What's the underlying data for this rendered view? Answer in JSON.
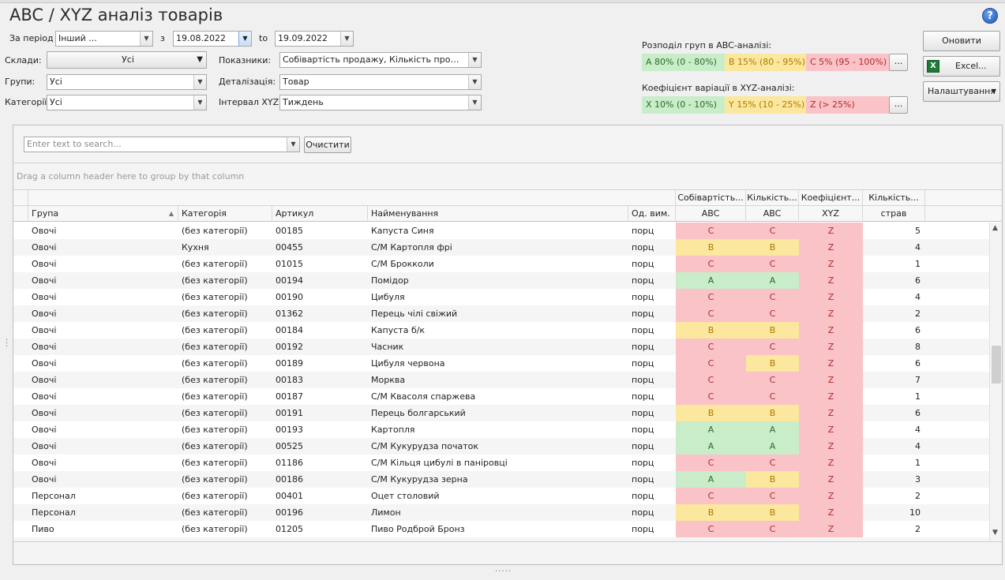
{
  "title": "ABC / XYZ аналіз товарів",
  "filters": {
    "period_label": "За період",
    "period_value": "Інший ...",
    "from_label": "з",
    "date_from": "19.08.2022",
    "to_label": "to",
    "date_to": "19.09.2022",
    "warehouses_label": "Склади:",
    "warehouses_value": "Усі",
    "indicators_label": "Показники:",
    "indicators_value": "Собівартість продажу, Кількість продажу,...",
    "groups_label": "Групи:",
    "groups_value": "Усі",
    "detail_label": "Деталізація:",
    "detail_value": "Товар",
    "categories_label": "Категорії",
    "categories_value": "Усі",
    "xyz_interval_label": "Інтервал XYZ:",
    "xyz_interval_value": "Тиждень"
  },
  "abc": {
    "label": "Розподіл груп в ABC-аналізі:",
    "a": "A 80% (0 - 80%)",
    "b": "B 15% (80 - 95%)",
    "c": "C 5% (95 - 100%)",
    "more": "..."
  },
  "xyz": {
    "label": "Коефіцієнт варіації в XYZ-аналізі:",
    "x": "X 10% (0 - 10%)",
    "y": "Y 15% (10 - 25%)",
    "z": "Z  (> 25%)",
    "more": "..."
  },
  "buttons": {
    "refresh": "Оновити",
    "excel": "Excel...",
    "settings": "Налаштування"
  },
  "search": {
    "placeholder": "Enter text to search...",
    "clear": "Очистити"
  },
  "group_hint": "Drag a column header here to group by that column",
  "columns_top": {
    "cost": "Собівартість...",
    "qty": "Кількість...",
    "coef": "Коефіцієнт...",
    "count": "Кількість..."
  },
  "columns": {
    "group": "Група",
    "category": "Категорія",
    "sku": "Артикул",
    "name": "Найменування",
    "unit": "Од. вим.",
    "cost_abc": "ABC",
    "qty_abc": "ABC",
    "xyz": "XYZ",
    "count": "страв"
  },
  "rows": [
    {
      "group": "Овочі",
      "category": "(без категорії)",
      "sku": "00185",
      "name": "Капуста Синя",
      "unit": "порц",
      "a1": "C",
      "a2": "C",
      "x": "Z",
      "n": "5"
    },
    {
      "group": "Овочі",
      "category": "Кухня",
      "sku": "00455",
      "name": "С/М Картопля фрі",
      "unit": "порц",
      "a1": "B",
      "a2": "B",
      "x": "Z",
      "n": "4"
    },
    {
      "group": "Овочі",
      "category": "(без категорії)",
      "sku": "01015",
      "name": "С/М Брокколи",
      "unit": "порц",
      "a1": "C",
      "a2": "C",
      "x": "Z",
      "n": "1"
    },
    {
      "group": "Овочі",
      "category": "(без категорії)",
      "sku": "00194",
      "name": "Помідор",
      "unit": "порц",
      "a1": "A",
      "a2": "A",
      "x": "Z",
      "n": "6"
    },
    {
      "group": "Овочі",
      "category": "(без категорії)",
      "sku": "00190",
      "name": "Цибуля",
      "unit": "порц",
      "a1": "C",
      "a2": "C",
      "x": "Z",
      "n": "4"
    },
    {
      "group": "Овочі",
      "category": "(без категорії)",
      "sku": "01362",
      "name": "Перець чілі свіжий",
      "unit": "порц",
      "a1": "C",
      "a2": "C",
      "x": "Z",
      "n": "2"
    },
    {
      "group": "Овочі",
      "category": "(без категорії)",
      "sku": "00184",
      "name": "Капуста б/к",
      "unit": "порц",
      "a1": "B",
      "a2": "B",
      "x": "Z",
      "n": "6"
    },
    {
      "group": "Овочі",
      "category": "(без категорії)",
      "sku": "00192",
      "name": "Часник",
      "unit": "порц",
      "a1": "C",
      "a2": "C",
      "x": "Z",
      "n": "8"
    },
    {
      "group": "Овочі",
      "category": "(без категорії)",
      "sku": "00189",
      "name": "Цибуля червона",
      "unit": "порц",
      "a1": "C",
      "a2": "B",
      "x": "Z",
      "n": "6"
    },
    {
      "group": "Овочі",
      "category": "(без категорії)",
      "sku": "00183",
      "name": "Морква",
      "unit": "порц",
      "a1": "C",
      "a2": "C",
      "x": "Z",
      "n": "7"
    },
    {
      "group": "Овочі",
      "category": "(без категорії)",
      "sku": "00187",
      "name": "С/М Квасоля спаржева",
      "unit": "порц",
      "a1": "C",
      "a2": "C",
      "x": "Z",
      "n": "1"
    },
    {
      "group": "Овочі",
      "category": "(без категорії)",
      "sku": "00191",
      "name": "Перець болгарський",
      "unit": "порц",
      "a1": "B",
      "a2": "B",
      "x": "Z",
      "n": "6"
    },
    {
      "group": "Овочі",
      "category": "(без категорії)",
      "sku": "00193",
      "name": "Картопля",
      "unit": "порц",
      "a1": "A",
      "a2": "A",
      "x": "Z",
      "n": "4"
    },
    {
      "group": "Овочі",
      "category": "(без категорії)",
      "sku": "00525",
      "name": "С/М Кукурудза початок",
      "unit": "порц",
      "a1": "A",
      "a2": "A",
      "x": "Z",
      "n": "4"
    },
    {
      "group": "Овочі",
      "category": "(без категорії)",
      "sku": "01186",
      "name": "С/М Кільця цибулі в паніровці",
      "unit": "порц",
      "a1": "C",
      "a2": "C",
      "x": "Z",
      "n": "1"
    },
    {
      "group": "Овочі",
      "category": "(без категорії)",
      "sku": "00186",
      "name": "С/М Кукурудза зерна",
      "unit": "порц",
      "a1": "A",
      "a2": "B",
      "x": "Z",
      "n": "3"
    },
    {
      "group": "Персонал",
      "category": "(без категорії)",
      "sku": "00401",
      "name": "Оцет столовий",
      "unit": "порц",
      "a1": "C",
      "a2": "C",
      "x": "Z",
      "n": "2"
    },
    {
      "group": "Персонал",
      "category": "(без категорії)",
      "sku": "00196",
      "name": "Лимон",
      "unit": "порц",
      "a1": "B",
      "a2": "B",
      "x": "Z",
      "n": "10"
    },
    {
      "group": "Пиво",
      "category": "(без категорії)",
      "sku": "01205",
      "name": "Пиво Родброй Бронз",
      "unit": "порц",
      "a1": "C",
      "a2": "C",
      "x": "Z",
      "n": "2"
    }
  ],
  "colors": {
    "a_bg": "#c9ecc9",
    "b_bg": "#fbe79d",
    "c_bg": "#f9c3c8",
    "accent": "#1c56b8"
  },
  "icons": {
    "help": "help-icon",
    "excel": "excel-icon",
    "dropdown": "chevron-down-icon"
  }
}
